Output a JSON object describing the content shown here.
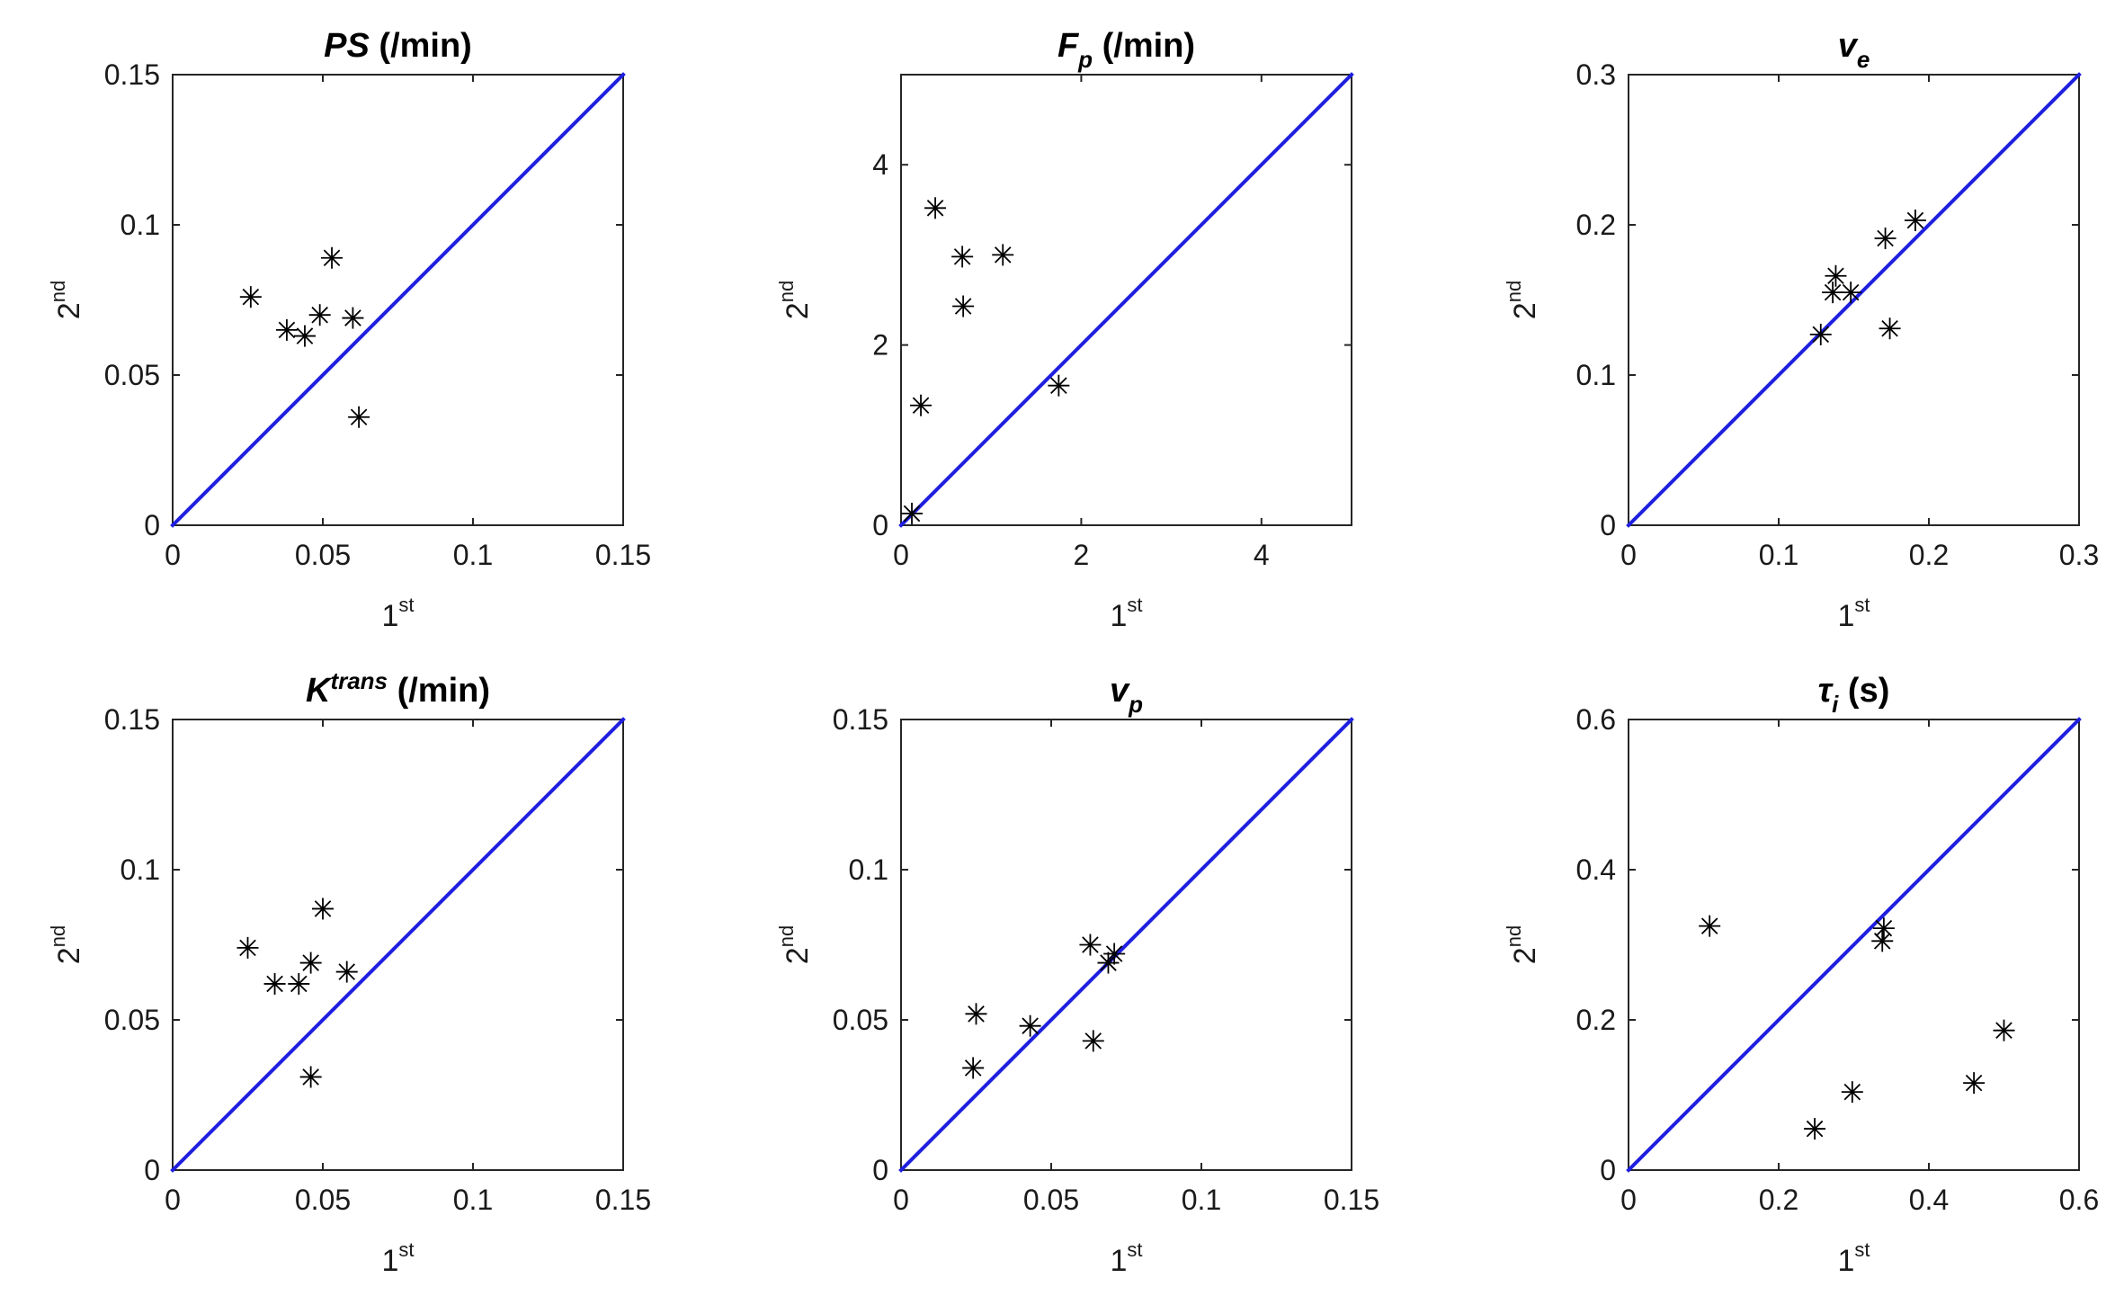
{
  "chart_data": [
    {
      "type": "scatter",
      "title": {
        "symbol": "PS",
        "sub": "",
        "sup": "",
        "unit": " (/min)"
      },
      "xlabel": {
        "base": "1",
        "sup": "st"
      },
      "ylabel": {
        "base": "2",
        "sup": "nd"
      },
      "xlim": [
        0,
        0.15
      ],
      "ylim": [
        0,
        0.15
      ],
      "xticks": [
        "0",
        "0.05",
        "0.1",
        "0.15"
      ],
      "yticks": [
        "0",
        "0.05",
        "0.1",
        "0.15"
      ],
      "xtick_values": [
        0,
        0.05,
        0.1,
        0.15
      ],
      "ytick_values": [
        0,
        0.05,
        0.1,
        0.15
      ],
      "identity_line": {
        "from": [
          0,
          0
        ],
        "to": [
          0.15,
          0.15
        ],
        "color": "#1f1fe0"
      },
      "points": [
        [
          0.026,
          0.076
        ],
        [
          0.038,
          0.065
        ],
        [
          0.044,
          0.063
        ],
        [
          0.049,
          0.07
        ],
        [
          0.053,
          0.089
        ],
        [
          0.06,
          0.069
        ],
        [
          0.062,
          0.036
        ]
      ]
    },
    {
      "type": "scatter",
      "title": {
        "symbol": "F",
        "sub": "p",
        "sup": "",
        "unit": " (/min)"
      },
      "xlabel": {
        "base": "1",
        "sup": "st"
      },
      "ylabel": {
        "base": "2",
        "sup": "nd"
      },
      "xlim": [
        0,
        5
      ],
      "ylim": [
        0,
        5
      ],
      "xticks": [
        "0",
        "2",
        "4"
      ],
      "yticks": [
        "0",
        "2",
        "4"
      ],
      "xtick_values": [
        0,
        2,
        4
      ],
      "ytick_values": [
        0,
        2,
        4
      ],
      "identity_line": {
        "from": [
          0,
          0
        ],
        "to": [
          5,
          5
        ],
        "color": "#1f1fe0"
      },
      "points": [
        [
          0.12,
          0.13
        ],
        [
          0.22,
          1.33
        ],
        [
          0.38,
          3.52
        ],
        [
          0.68,
          2.98
        ],
        [
          0.69,
          2.43
        ],
        [
          1.13,
          3.0
        ],
        [
          1.75,
          1.55
        ]
      ]
    },
    {
      "type": "scatter",
      "title": {
        "symbol": "v",
        "sub": "e",
        "sup": "",
        "unit": ""
      },
      "xlabel": {
        "base": "1",
        "sup": "st"
      },
      "ylabel": {
        "base": "2",
        "sup": "nd"
      },
      "xlim": [
        0,
        0.3
      ],
      "ylim": [
        0,
        0.3
      ],
      "xticks": [
        "0",
        "0.1",
        "0.2",
        "0.3"
      ],
      "yticks": [
        "0",
        "0.1",
        "0.2",
        "0.3"
      ],
      "xtick_values": [
        0,
        0.1,
        0.2,
        0.3
      ],
      "ytick_values": [
        0,
        0.1,
        0.2,
        0.3
      ],
      "identity_line": {
        "from": [
          0,
          0
        ],
        "to": [
          0.3,
          0.3
        ],
        "color": "#1f1fe0"
      },
      "points": [
        [
          0.128,
          0.127
        ],
        [
          0.136,
          0.155
        ],
        [
          0.138,
          0.166
        ],
        [
          0.148,
          0.155
        ],
        [
          0.171,
          0.191
        ],
        [
          0.174,
          0.131
        ],
        [
          0.191,
          0.203
        ]
      ]
    },
    {
      "type": "scatter",
      "title": {
        "symbol": "K",
        "sub": "",
        "sup": "trans",
        "unit": " (/min)"
      },
      "xlabel": {
        "base": "1",
        "sup": "st"
      },
      "ylabel": {
        "base": "2",
        "sup": "nd"
      },
      "xlim": [
        0,
        0.15
      ],
      "ylim": [
        0,
        0.15
      ],
      "xticks": [
        "0",
        "0.05",
        "0.1",
        "0.15"
      ],
      "yticks": [
        "0",
        "0.05",
        "0.1",
        "0.15"
      ],
      "xtick_values": [
        0,
        0.05,
        0.1,
        0.15
      ],
      "ytick_values": [
        0,
        0.05,
        0.1,
        0.15
      ],
      "identity_line": {
        "from": [
          0,
          0
        ],
        "to": [
          0.15,
          0.15
        ],
        "color": "#1f1fe0"
      },
      "points": [
        [
          0.025,
          0.074
        ],
        [
          0.034,
          0.062
        ],
        [
          0.042,
          0.062
        ],
        [
          0.046,
          0.069
        ],
        [
          0.05,
          0.087
        ],
        [
          0.058,
          0.066
        ],
        [
          0.046,
          0.031
        ]
      ]
    },
    {
      "type": "scatter",
      "title": {
        "symbol": "v",
        "sub": "p",
        "sup": "",
        "unit": ""
      },
      "xlabel": {
        "base": "1",
        "sup": "st"
      },
      "ylabel": {
        "base": "2",
        "sup": "nd"
      },
      "xlim": [
        0,
        0.15
      ],
      "ylim": [
        0,
        0.15
      ],
      "xticks": [
        "0",
        "0.05",
        "0.1",
        "0.15"
      ],
      "yticks": [
        "0",
        "0.05",
        "0.1",
        "0.15"
      ],
      "xtick_values": [
        0,
        0.05,
        0.1,
        0.15
      ],
      "ytick_values": [
        0,
        0.05,
        0.1,
        0.15
      ],
      "identity_line": {
        "from": [
          0,
          0
        ],
        "to": [
          0.15,
          0.15
        ],
        "color": "#1f1fe0"
      },
      "points": [
        [
          0.024,
          0.034
        ],
        [
          0.025,
          0.052
        ],
        [
          0.043,
          0.048
        ],
        [
          0.063,
          0.075
        ],
        [
          0.064,
          0.043
        ],
        [
          0.069,
          0.069
        ],
        [
          0.071,
          0.072
        ]
      ]
    },
    {
      "type": "scatter",
      "title": {
        "symbol": "τ",
        "sub": "i",
        "sup": "",
        "unit": " (s)"
      },
      "xlabel": {
        "base": "1",
        "sup": "st"
      },
      "ylabel": {
        "base": "2",
        "sup": "nd"
      },
      "xlim": [
        0,
        0.6
      ],
      "ylim": [
        0,
        0.6
      ],
      "xticks": [
        "0",
        "0.2",
        "0.4",
        "0.6"
      ],
      "yticks": [
        "0",
        "0.2",
        "0.4",
        "0.6"
      ],
      "xtick_values": [
        0,
        0.2,
        0.4,
        0.6
      ],
      "ytick_values": [
        0,
        0.2,
        0.4,
        0.6
      ],
      "identity_line": {
        "from": [
          0,
          0
        ],
        "to": [
          0.6,
          0.6
        ],
        "color": "#1f1fe0"
      },
      "points": [
        [
          0.108,
          0.325
        ],
        [
          0.248,
          0.055
        ],
        [
          0.298,
          0.104
        ],
        [
          0.338,
          0.305
        ],
        [
          0.34,
          0.322
        ],
        [
          0.46,
          0.116
        ],
        [
          0.5,
          0.186
        ]
      ]
    }
  ]
}
